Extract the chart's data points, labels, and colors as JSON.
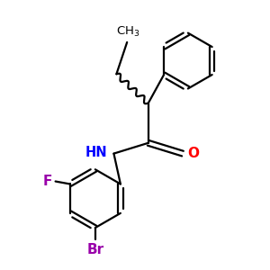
{
  "background_color": "#ffffff",
  "atom_colors": {
    "C": "#000000",
    "N": "#0000ff",
    "O": "#ff0000",
    "F": "#9900aa",
    "Br": "#9900aa"
  },
  "bond_color": "#000000",
  "figsize": [
    3.0,
    3.0
  ],
  "dpi": 100,
  "lw": 1.6
}
